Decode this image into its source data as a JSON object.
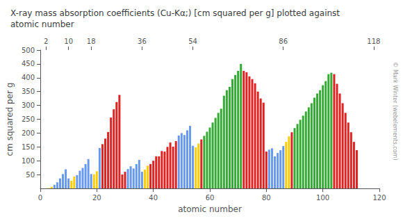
{
  "chart_data": {
    "type": "bar",
    "title": "X-ray mass absorption coefficients (Cu-Kα;) [cm squared per g] plotted against\natomic number",
    "xlabel": "atomic number",
    "ylabel": "cm squared per g",
    "annotations": [
      "© Mark Winter (webelements.com)"
    ],
    "x": [
      1,
      2,
      3,
      4,
      5,
      6,
      7,
      8,
      9,
      10,
      11,
      12,
      13,
      14,
      15,
      16,
      17,
      18,
      19,
      20,
      21,
      22,
      23,
      24,
      25,
      26,
      27,
      28,
      29,
      30,
      31,
      32,
      33,
      34,
      35,
      36,
      37,
      38,
      39,
      40,
      41,
      42,
      43,
      44,
      45,
      46,
      47,
      48,
      49,
      50,
      51,
      52,
      53,
      54,
      55,
      56,
      57,
      58,
      59,
      60,
      61,
      62,
      63,
      64,
      65,
      66,
      67,
      68,
      69,
      70,
      71,
      72,
      73,
      74,
      75,
      76,
      77,
      78,
      79,
      80,
      81,
      82,
      83,
      84,
      85,
      86,
      87,
      88,
      89,
      90,
      91,
      92,
      93,
      94,
      95,
      96,
      97,
      98,
      99,
      100,
      101,
      102,
      103,
      104,
      105,
      106,
      107,
      108,
      109,
      110,
      111,
      112
    ],
    "values": [
      0.4,
      0.5,
      1.5,
      6,
      13,
      22,
      36,
      52,
      69,
      36,
      28,
      43,
      48,
      64,
      74,
      88,
      106,
      52,
      51,
      62,
      146,
      160,
      180,
      204,
      256,
      286,
      312,
      338,
      50,
      60,
      70,
      80,
      72,
      88,
      103,
      60,
      68,
      82,
      88,
      100,
      116,
      116,
      135,
      133,
      150,
      166,
      151,
      171,
      191,
      200,
      193,
      210,
      226,
      154,
      148,
      162,
      177,
      190,
      205,
      220,
      238,
      255,
      273,
      288,
      335,
      355,
      367,
      395,
      410,
      425,
      450,
      425,
      420,
      405,
      395,
      380,
      350,
      325,
      310,
      133,
      140,
      145,
      116,
      128,
      138,
      153,
      168,
      188,
      203,
      218,
      233,
      248,
      263,
      278,
      293,
      308,
      328,
      343,
      355,
      373,
      388,
      413,
      418,
      413,
      378,
      343,
      308,
      273,
      238,
      203,
      168,
      138
    ],
    "colors": [
      "#ffcc00",
      "#ffcc00",
      "#ffcc00",
      "#ffcc00",
      "#6699ee",
      "#6699ee",
      "#6699ee",
      "#6699ee",
      "#6699ee",
      "#6699ee",
      "#ffcc00",
      "#ffcc00",
      "#6699ee",
      "#6699ee",
      "#6699ee",
      "#6699ee",
      "#6699ee",
      "#6699ee",
      "#ffcc00",
      "#ffcc00",
      "#6699ee",
      "#dd2222",
      "#dd2222",
      "#dd2222",
      "#dd2222",
      "#dd2222",
      "#dd2222",
      "#dd2222",
      "#dd2222",
      "#dd2222",
      "#6699ee",
      "#6699ee",
      "#6699ee",
      "#6699ee",
      "#6699ee",
      "#6699ee",
      "#ffcc00",
      "#ffcc00",
      "#dd2222",
      "#dd2222",
      "#dd2222",
      "#dd2222",
      "#dd2222",
      "#dd2222",
      "#dd2222",
      "#dd2222",
      "#dd2222",
      "#dd2222",
      "#6699ee",
      "#6699ee",
      "#6699ee",
      "#6699ee",
      "#6699ee",
      "#6699ee",
      "#ffcc00",
      "#ffcc00",
      "#dd2222",
      "#33aa33",
      "#33aa33",
      "#33aa33",
      "#33aa33",
      "#33aa33",
      "#33aa33",
      "#33aa33",
      "#33aa33",
      "#33aa33",
      "#33aa33",
      "#33aa33",
      "#33aa33",
      "#33aa33",
      "#33aa33",
      "#dd2222",
      "#dd2222",
      "#dd2222",
      "#dd2222",
      "#dd2222",
      "#dd2222",
      "#dd2222",
      "#dd2222",
      "#dd2222",
      "#6699ee",
      "#6699ee",
      "#6699ee",
      "#6699ee",
      "#6699ee",
      "#6699ee",
      "#ffcc00",
      "#ffcc00",
      "#dd2222",
      "#33aa33",
      "#33aa33",
      "#33aa33",
      "#33aa33",
      "#33aa33",
      "#33aa33",
      "#33aa33",
      "#33aa33",
      "#33aa33",
      "#33aa33",
      "#33aa33",
      "#33aa33",
      "#33aa33",
      "#33aa33",
      "#dd2222",
      "#dd2222",
      "#dd2222",
      "#dd2222",
      "#dd2222",
      "#dd2222",
      "#dd2222",
      "#dd2222",
      "#dd2222"
    ],
    "xlim": [
      0,
      120
    ],
    "xticks": [
      0,
      20,
      40,
      60,
      80,
      100,
      120
    ],
    "x2lim": [
      0,
      120
    ],
    "x2ticks": [
      2,
      10,
      18,
      36,
      54,
      86,
      118
    ],
    "ylim": [
      0,
      500
    ],
    "yticks": [
      50,
      100,
      150,
      200,
      250,
      300,
      350,
      400,
      450,
      500
    ],
    "grid": false
  }
}
